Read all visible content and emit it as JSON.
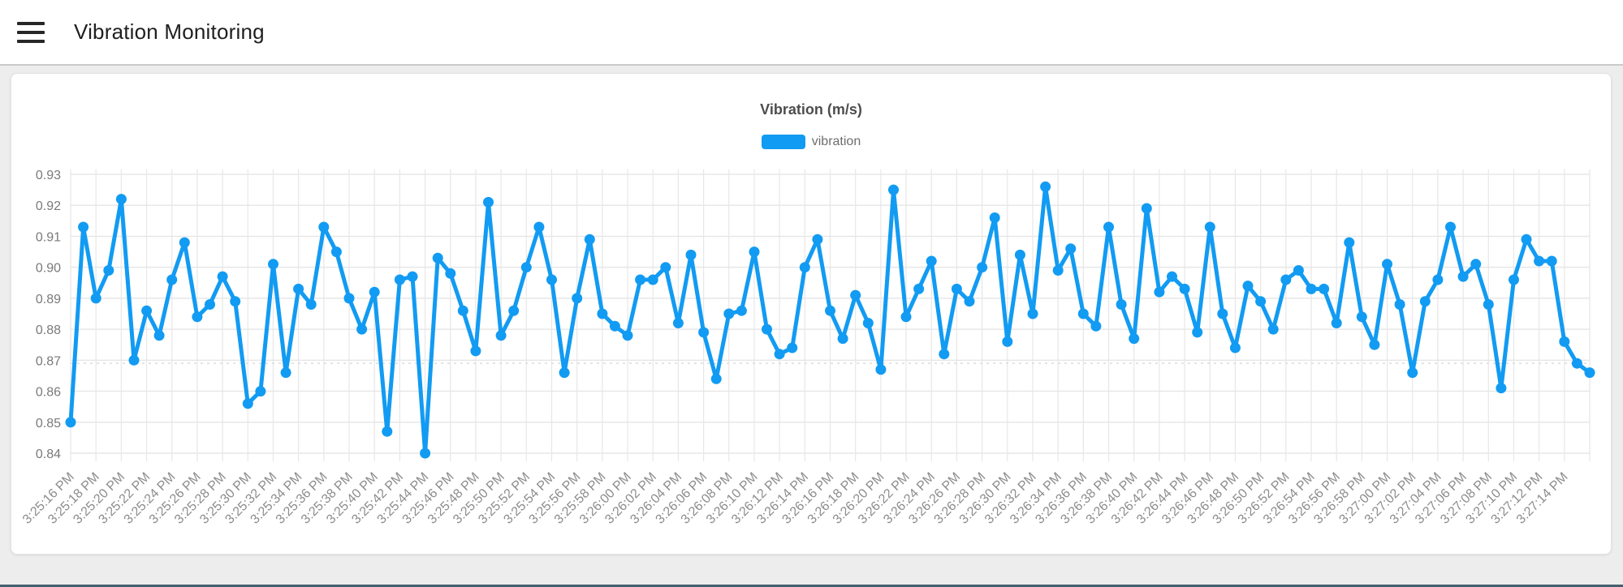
{
  "header": {
    "title": "Vibration Monitoring"
  },
  "chart": {
    "title": "Vibration (m/s)",
    "legend": {
      "label": "vibration",
      "color": "#129bf2"
    }
  },
  "colors": {
    "series_blue": "#129bf2",
    "page_background": "#ededed",
    "card_background": "#ffffff",
    "gridline": "#e7e7e7",
    "dashed_reference": "#dcdcdc",
    "y_label_text": "#7a7a7a",
    "x_label_text": "#8c8c8c",
    "footer_bar": "#44606e"
  },
  "chart_data": {
    "type": "line",
    "title": "Vibration (m/s)",
    "legend_entries": [
      "vibration"
    ],
    "legend_position": "top-center",
    "grid": true,
    "ylim": [
      0.84,
      0.93
    ],
    "ytick_step": 0.01,
    "ytick_labels": [
      "0.93",
      "0.92",
      "0.91",
      "0.90",
      "0.89",
      "0.88",
      "0.87",
      "0.86",
      "0.85",
      "0.84"
    ],
    "reference_line_y": 0.869,
    "points_per_xlabel": 2,
    "x_tick_labels": [
      "3:25:16 PM",
      "3:25:18 PM",
      "3:25:20 PM",
      "3:25:22 PM",
      "3:25:24 PM",
      "3:25:26 PM",
      "3:25:28 PM",
      "3:25:30 PM",
      "3:25:32 PM",
      "3:25:34 PM",
      "3:25:36 PM",
      "3:25:38 PM",
      "3:25:40 PM",
      "3:25:42 PM",
      "3:25:44 PM",
      "3:25:46 PM",
      "3:25:48 PM",
      "3:25:50 PM",
      "3:25:52 PM",
      "3:25:54 PM",
      "3:25:56 PM",
      "3:25:58 PM",
      "3:26:00 PM",
      "3:26:02 PM",
      "3:26:04 PM",
      "3:26:06 PM",
      "3:26:08 PM",
      "3:26:10 PM",
      "3:26:12 PM",
      "3:26:14 PM",
      "3:26:16 PM",
      "3:26:18 PM",
      "3:26:20 PM",
      "3:26:22 PM",
      "3:26:24 PM",
      "3:26:26 PM",
      "3:26:28 PM",
      "3:26:30 PM",
      "3:26:32 PM",
      "3:26:34 PM",
      "3:26:36 PM",
      "3:26:38 PM",
      "3:26:40 PM",
      "3:26:42 PM",
      "3:26:44 PM",
      "3:26:46 PM",
      "3:26:48 PM",
      "3:26:50 PM",
      "3:26:52 PM",
      "3:26:54 PM",
      "3:26:56 PM",
      "3:26:58 PM",
      "3:27:00 PM",
      "3:27:02 PM",
      "3:27:04 PM",
      "3:27:06 PM",
      "3:27:08 PM",
      "3:27:10 PM",
      "3:27:12 PM",
      "3:27:14 PM"
    ],
    "series": [
      {
        "name": "vibration",
        "color": "#129bf2",
        "values": [
          0.85,
          0.913,
          0.89,
          0.899,
          0.922,
          0.87,
          0.886,
          0.878,
          0.896,
          0.908,
          0.884,
          0.888,
          0.897,
          0.889,
          0.856,
          0.86,
          0.901,
          0.866,
          0.893,
          0.888,
          0.913,
          0.905,
          0.89,
          0.88,
          0.892,
          0.847,
          0.896,
          0.897,
          0.84,
          0.903,
          0.898,
          0.886,
          0.873,
          0.921,
          0.878,
          0.886,
          0.9,
          0.913,
          0.896,
          0.866,
          0.89,
          0.909,
          0.885,
          0.881,
          0.878,
          0.896,
          0.896,
          0.9,
          0.882,
          0.904,
          0.879,
          0.864,
          0.885,
          0.886,
          0.905,
          0.88,
          0.872,
          0.874,
          0.9,
          0.909,
          0.886,
          0.877,
          0.891,
          0.882,
          0.867,
          0.925,
          0.884,
          0.893,
          0.902,
          0.872,
          0.893,
          0.889,
          0.9,
          0.916,
          0.876,
          0.904,
          0.885,
          0.926,
          0.899,
          0.906,
          0.885,
          0.881,
          0.913,
          0.888,
          0.877,
          0.919,
          0.892,
          0.897,
          0.893,
          0.879,
          0.913,
          0.885,
          0.874,
          0.894,
          0.889,
          0.88,
          0.896,
          0.899,
          0.893,
          0.893,
          0.882,
          0.908,
          0.884,
          0.875,
          0.901,
          0.888,
          0.866,
          0.889,
          0.896,
          0.913,
          0.897,
          0.901,
          0.888,
          0.861,
          0.896,
          0.909,
          0.902,
          0.902,
          0.876,
          0.869,
          0.866
        ]
      }
    ]
  }
}
